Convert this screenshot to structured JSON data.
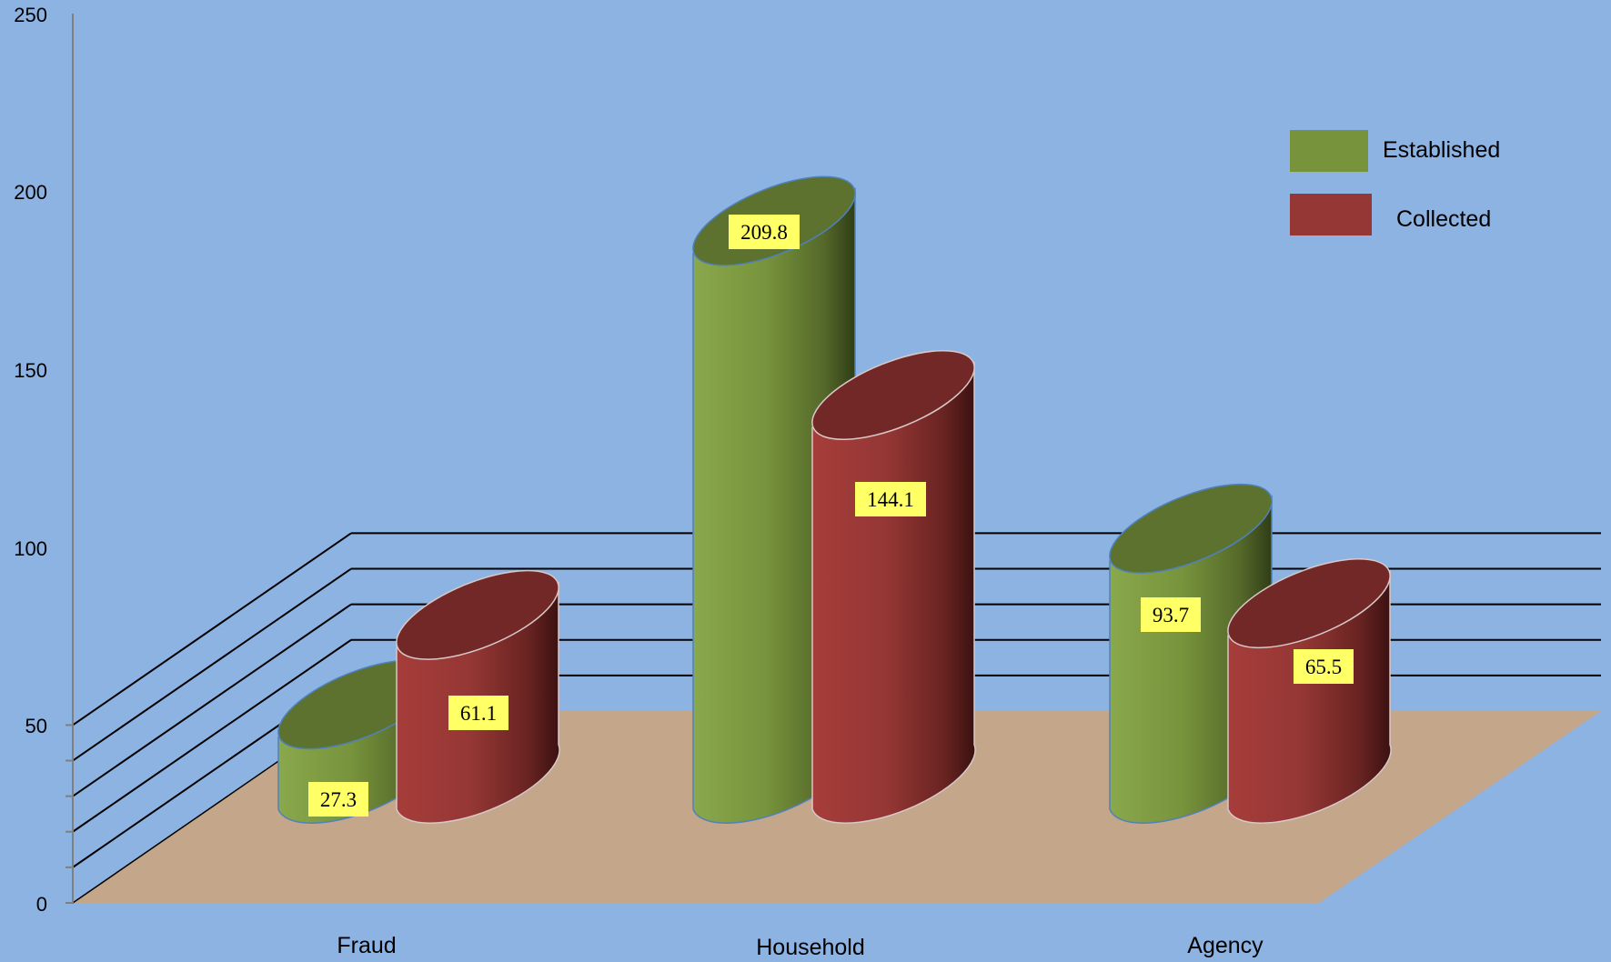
{
  "chart_data": {
    "type": "bar",
    "categories": [
      "Fraud",
      "Household",
      "Agency"
    ],
    "series": [
      {
        "name": "Established",
        "values": [
          27.3,
          209.8,
          93.7
        ],
        "color": "#77933c"
      },
      {
        "name": "Collected",
        "values": [
          61.1,
          144.1,
          65.5
        ],
        "color": "#953735"
      }
    ],
    "y_ticks": [
      "0",
      "50",
      "100",
      "150",
      "200",
      "250"
    ],
    "ylim": [
      0,
      250
    ],
    "grid": true,
    "legend_position": "top-right",
    "colors": {
      "background": "#8db3e2",
      "floor": "#c4a68a",
      "data_label_bg": "#ffff66"
    }
  }
}
